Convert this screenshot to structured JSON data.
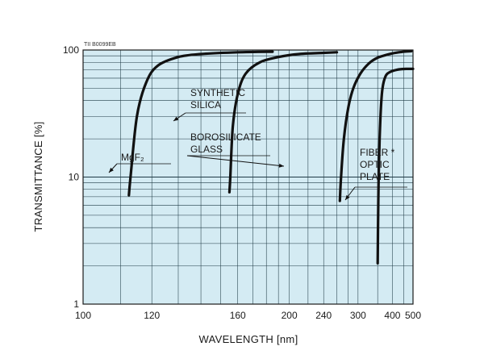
{
  "chart_data": {
    "type": "line",
    "code": "TII B0099EB",
    "xlabel": "WAVELENGTH [nm]",
    "ylabel": "TRANSMITTANCE [%]",
    "x_scale": "reciprocal",
    "y_scale": "log",
    "xlim": [
      100,
      500
    ],
    "ylim": [
      1,
      100
    ],
    "x_ticks": [
      {
        "value": 100,
        "label": "100"
      },
      {
        "value": 120,
        "label": "120"
      },
      {
        "value": 160,
        "label": "160"
      },
      {
        "value": 200,
        "label": "200"
      },
      {
        "value": 240,
        "label": "240"
      },
      {
        "value": 300,
        "label": "300"
      },
      {
        "value": 400,
        "label": "400"
      },
      {
        "value": 500,
        "label": "500"
      }
    ],
    "y_ticks": [
      {
        "value": 1,
        "label": "1"
      },
      {
        "value": 10,
        "label": "10"
      },
      {
        "value": 100,
        "label": "100"
      }
    ],
    "grid": true,
    "series": [
      {
        "name": "MgF2",
        "points": [
          [
            112.5,
            7.2
          ],
          [
            113,
            10
          ],
          [
            115,
            30
          ],
          [
            118,
            55
          ],
          [
            122,
            75
          ],
          [
            130,
            88
          ],
          [
            140,
            93
          ],
          [
            160,
            96
          ],
          [
            185,
            97
          ]
        ]
      },
      {
        "name": "SYNTHETIC SILICA",
        "points": [
          [
            155,
            7.6
          ],
          [
            155.5,
            10
          ],
          [
            157,
            25
          ],
          [
            160,
            45
          ],
          [
            165,
            65
          ],
          [
            175,
            80
          ],
          [
            190,
            88
          ],
          [
            210,
            93
          ],
          [
            240,
            95
          ],
          [
            260,
            96
          ]
        ]
      },
      {
        "name": "BOROSILICATE GLASS",
        "points": [
          [
            265,
            6.5
          ],
          [
            267,
            10
          ],
          [
            272,
            20
          ],
          [
            280,
            35
          ],
          [
            290,
            50
          ],
          [
            305,
            65
          ],
          [
            325,
            78
          ],
          [
            350,
            87
          ],
          [
            400,
            94
          ],
          [
            450,
            97
          ],
          [
            490,
            98
          ]
        ]
      },
      {
        "name": "FIBER OPTIC PLATE",
        "points": [
          [
            350,
            2.1
          ],
          [
            351,
            4
          ],
          [
            353,
            10
          ],
          [
            356,
            20
          ],
          [
            360,
            35
          ],
          [
            365,
            50
          ],
          [
            375,
            62
          ],
          [
            390,
            67
          ],
          [
            420,
            70
          ],
          [
            460,
            71
          ],
          [
            500,
            71
          ]
        ]
      }
    ],
    "annotations": [
      {
        "lines": [
          "MgF₂"
        ]
      },
      {
        "lines": [
          "SYNTHETIC",
          "SILICA"
        ]
      },
      {
        "lines": [
          "BOROSILICATE",
          "GLASS"
        ]
      },
      {
        "lines": [
          "FIBER *",
          "OPTIC",
          "PLATE"
        ]
      }
    ]
  }
}
